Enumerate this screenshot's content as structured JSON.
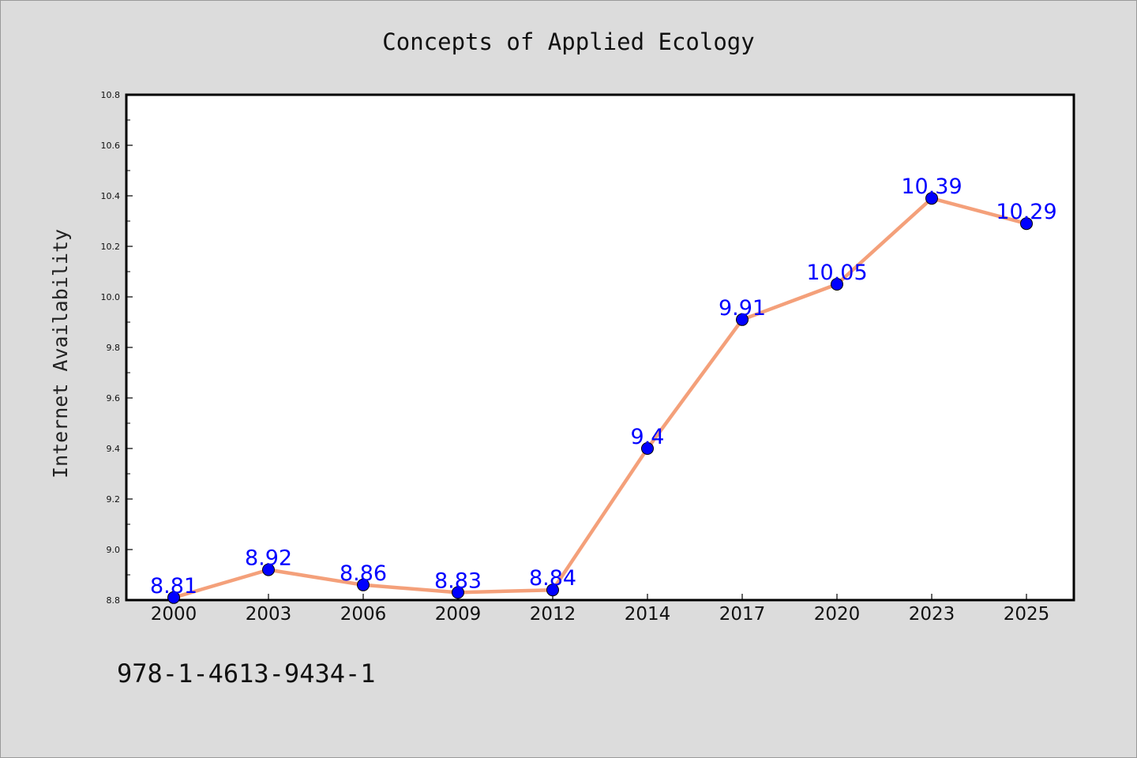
{
  "chart_data": {
    "type": "line",
    "title": "Concepts of Applied Ecology",
    "xlabel": "",
    "ylabel": "Internet Availability",
    "categories": [
      "2000",
      "2003",
      "2006",
      "2009",
      "2012",
      "2014",
      "2017",
      "2020",
      "2023",
      "2025"
    ],
    "series": [
      {
        "values": [
          8.81,
          8.92,
          8.86,
          8.83,
          8.84,
          9.4,
          9.91,
          10.05,
          10.39,
          10.29
        ]
      }
    ],
    "data_labels": [
      "8.81",
      "8.92",
      "8.86",
      "8.83",
      "8.84",
      "9.4",
      "9.91",
      "10.05",
      "10.39",
      "10.29"
    ],
    "ylim": [
      8.8,
      10.8
    ],
    "yticks": [
      "8.8",
      "9.0",
      "9.2",
      "9.4",
      "9.6",
      "9.8",
      "10.0",
      "10.2",
      "10.4",
      "10.6",
      "10.8"
    ],
    "grid": false,
    "line_color": "#f4a07a",
    "marker_color": "#0000ff",
    "label_color": "#0000ff"
  },
  "footnote": "978-1-4613-9434-1"
}
